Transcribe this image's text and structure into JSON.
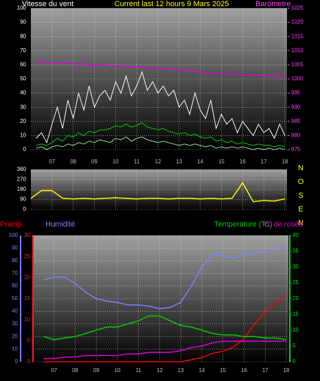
{
  "chart_data": [
    {
      "type": "line",
      "title": "Current last 12 hours 9 Mars 2025",
      "ylabel": "Vitesse du vent",
      "y2label": "Barometre",
      "title_color": "#ffff00",
      "ylabel_color": "#ffffff",
      "y2label_color": "#ff40ff",
      "x": [
        6.25,
        6.5,
        6.75,
        7,
        7.25,
        7.5,
        7.75,
        8,
        8.25,
        8.5,
        8.75,
        9,
        9.25,
        9.5,
        9.75,
        10,
        10.25,
        10.5,
        10.75,
        11,
        11.25,
        11.5,
        11.75,
        12,
        12.25,
        12.5,
        12.75,
        13,
        13.25,
        13.5,
        13.75,
        14,
        14.25,
        14.5,
        14.75,
        15,
        15.25,
        15.5,
        15.75,
        16,
        16.25,
        16.5,
        16.75,
        17,
        17.25,
        17.5,
        17.75,
        18
      ],
      "xlim": [
        6,
        18.1
      ],
      "xticks": [
        {
          "value": 7,
          "label": "07"
        },
        {
          "value": 8,
          "label": "08"
        },
        {
          "value": 9,
          "label": "09"
        },
        10,
        11,
        12,
        13,
        14,
        15,
        16,
        17,
        18
      ],
      "ylim": [
        0,
        100
      ],
      "yticks": [
        0,
        10,
        20,
        30,
        40,
        50,
        60,
        70,
        80,
        90,
        100
      ],
      "ytick_color": "#ffffff",
      "y2lim": [
        975,
        1025
      ],
      "y2ticks": [
        975,
        980,
        985,
        990,
        995,
        1000,
        1005,
        1010,
        1015,
        1020,
        1025
      ],
      "y2tick_color": "#ff40ff",
      "grid": true,
      "series": [
        {
          "color": "#ffffff",
          "values": [
            8,
            12,
            5,
            18,
            30,
            15,
            35,
            22,
            40,
            28,
            45,
            30,
            38,
            42,
            35,
            48,
            40,
            52,
            38,
            45,
            55,
            42,
            48,
            40,
            45,
            38,
            42,
            30,
            35,
            25,
            40,
            28,
            22,
            35,
            15,
            25,
            18,
            22,
            12,
            20,
            15,
            10,
            18,
            12,
            15,
            8,
            18,
            10
          ]
        },
        {
          "color": "#a0e0a0",
          "values": [
            1,
            2,
            0,
            2,
            3,
            2,
            4,
            3,
            5,
            4,
            6,
            5,
            7,
            6,
            5,
            8,
            7,
            9,
            6,
            8,
            9,
            7,
            6,
            5,
            6,
            5,
            4,
            3,
            4,
            3,
            4,
            3,
            2,
            3,
            1,
            2,
            1,
            2,
            1,
            2,
            1,
            0,
            1,
            0,
            1,
            0,
            1,
            0
          ]
        },
        {
          "color": "#00d000",
          "values": [
            3,
            4,
            3,
            5,
            8,
            6,
            10,
            9,
            12,
            10,
            13,
            12,
            14,
            14,
            15,
            17,
            16,
            18,
            16,
            17,
            19,
            16,
            15,
            14,
            15,
            13,
            12,
            11,
            12,
            10,
            11,
            9,
            8,
            9,
            6,
            7,
            5,
            6,
            4,
            5,
            4,
            3,
            4,
            3,
            3,
            2,
            3,
            2
          ]
        },
        {
          "color": "#e000e0",
          "axis": "y2",
          "values": [
            1006,
            1006,
            1005.9,
            1005.8,
            1005.7,
            1005.6,
            1005.5,
            1005.4,
            1005.3,
            1005.2,
            1005.1,
            1005,
            1004.9,
            1004.8,
            1004.7,
            1004.6,
            1004.5,
            1004.4,
            1004.3,
            1004.2,
            1004.1,
            1004,
            1003.9,
            1003.8,
            1003.7,
            1003.5,
            1003.4,
            1003.2,
            1003,
            1002.8,
            1002.6,
            1002.4,
            1002.2,
            1002,
            1001.9,
            1001.8,
            1001.8,
            1001.7,
            1001.6,
            1001.5,
            1001.5,
            1001.4,
            1001.3,
            1001.2,
            1001.1,
            1001,
            1000.8,
            1000.6
          ]
        }
      ]
    },
    {
      "type": "line",
      "compass_labels": [
        "N",
        "O",
        "S",
        "E",
        "N"
      ],
      "compass_color": "#ffff00",
      "x": [
        6,
        6.5,
        7,
        7.5,
        8,
        8.5,
        9,
        9.5,
        10,
        10.5,
        11,
        11.5,
        12,
        12.5,
        13,
        13.5,
        14,
        14.5,
        15,
        15.5,
        16,
        16.5,
        17,
        17.5,
        18
      ],
      "xlim": [
        6,
        18.1
      ],
      "xticks": [
        {
          "value": 7,
          "label": "07"
        },
        {
          "value": 8,
          "label": "08"
        },
        {
          "value": 9,
          "label": "09"
        },
        10,
        11,
        12,
        13,
        14,
        15,
        16,
        17,
        18
      ],
      "ylim": [
        0,
        360
      ],
      "yticks": [
        0,
        90,
        180,
        270,
        360
      ],
      "ytick_color": "#ffffff",
      "grid": true,
      "series": [
        {
          "color": "#ffff00",
          "values": [
            100,
            170,
            170,
            100,
            95,
            100,
            95,
            100,
            105,
            100,
            95,
            100,
            100,
            95,
            100,
            100,
            95,
            100,
            95,
            100,
            240,
            70,
            80,
            75,
            95
          ]
        }
      ]
    },
    {
      "type": "line",
      "x": [
        6.5,
        7,
        7.5,
        8,
        8.5,
        9,
        9.5,
        10,
        10.5,
        11,
        11.5,
        12,
        12.5,
        13,
        13.5,
        14,
        14.5,
        15,
        15.5,
        16,
        16.5,
        17,
        17.5,
        18
      ],
      "xlim": [
        6,
        18.1
      ],
      "xticks": [
        {
          "value": 7,
          "label": "07"
        },
        {
          "value": 8,
          "label": "08"
        },
        {
          "value": 9,
          "label": "09"
        },
        10,
        11,
        12,
        13,
        14,
        15,
        16,
        17,
        18
      ],
      "ylim": [
        0,
        100
      ],
      "yticks": [
        0,
        10,
        20,
        30,
        40,
        50,
        60,
        70,
        80,
        90,
        100
      ],
      "ytick_color": "#8080ff",
      "y2lim": [
        0,
        40
      ],
      "y2ticks": [
        0,
        5,
        10,
        15,
        20,
        25,
        30,
        35,
        40
      ],
      "y2tick_color": "#00e000",
      "y3lim": [
        0,
        30
      ],
      "y3ticks": [
        0,
        5,
        10,
        15,
        20,
        25,
        30
      ],
      "y3tick_color": "#ff2020",
      "grid": true,
      "series": [
        {
          "name": "Précip.",
          "color": "#ff0000",
          "axis": "y3",
          "values": [
            0,
            0,
            0,
            0,
            0,
            0,
            0,
            0,
            0,
            0,
            0,
            0,
            0,
            0,
            0.5,
            1,
            2,
            2.5,
            3.5,
            5.5,
            9,
            12,
            14,
            16
          ]
        },
        {
          "name": "Humidité",
          "color": "#8080ff",
          "values": [
            65,
            67,
            67,
            62,
            55,
            50,
            48,
            47,
            45,
            45,
            44,
            42,
            43,
            47,
            60,
            75,
            85,
            84,
            82,
            85,
            86,
            88,
            89,
            91
          ]
        },
        {
          "name": "Temperature (°C)",
          "color": "#00d000",
          "axis": "y2",
          "values": [
            8,
            7,
            7.5,
            8,
            9,
            10,
            11,
            11,
            12,
            13,
            14.5,
            14.5,
            13,
            11.5,
            11,
            10,
            9,
            8.5,
            8.5,
            8,
            8,
            7.5,
            7.5,
            7
          ]
        },
        {
          "name": "Pt. de rosée",
          "color": "#e000e0",
          "axis": "y2",
          "values": [
            1,
            1,
            1.5,
            1.5,
            2,
            2,
            2,
            2,
            2.5,
            2.5,
            3,
            3,
            3,
            3.5,
            4.5,
            5,
            6,
            6.5,
            6.5,
            6.5,
            6.5,
            6.5,
            6.5,
            6.5
          ]
        }
      ]
    }
  ]
}
